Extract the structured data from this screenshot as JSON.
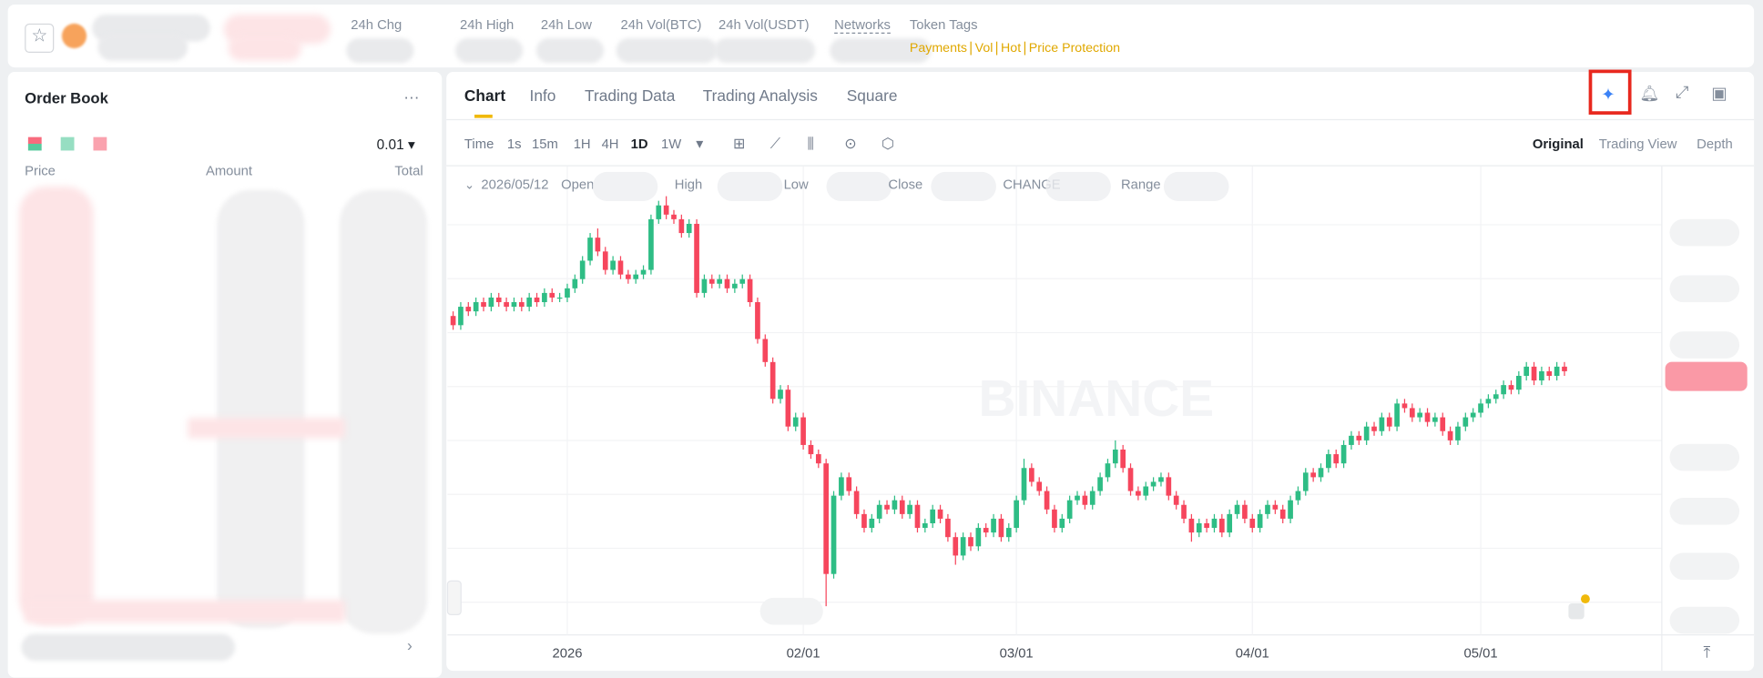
{
  "top_bar": {
    "stats": [
      "24h Chg",
      "24h High",
      "24h Low",
      "24h Vol(BTC)",
      "24h Vol(USDT)",
      "Networks"
    ],
    "token_tags_label": "Token Tags",
    "tags": [
      "Payments",
      "Vol",
      "Hot",
      "Price Protection"
    ]
  },
  "order_book": {
    "title": "Order Book",
    "precision": "0.01",
    "columns": [
      "Price",
      "Amount",
      "Total"
    ]
  },
  "chart_panel": {
    "tabs": [
      "Chart",
      "Info",
      "Trading Data",
      "Trading Analysis",
      "Square"
    ],
    "intervals": [
      "Time",
      "1s",
      "15m",
      "1H",
      "4H",
      "1D",
      "1W"
    ],
    "views": [
      "Original",
      "Trading View",
      "Depth"
    ],
    "legend": {
      "date": "2026/05/12",
      "fields": [
        "Open",
        "High",
        "Low",
        "Close",
        "CHANGE",
        "Range"
      ]
    },
    "watermark": "BINANCE"
  },
  "chart": {
    "type": "candlestick",
    "x_labels": [
      "2026",
      "02/01",
      "03/01",
      "04/01",
      "05/01"
    ],
    "ylim": [
      0,
      100
    ],
    "up_color": "#2ebd85",
    "down_color": "#f6465d",
    "grid": true,
    "candles": [
      [
        68,
        69,
        65,
        66
      ],
      [
        66,
        71,
        65,
        70
      ],
      [
        70,
        71,
        68,
        69
      ],
      [
        69,
        72,
        68,
        71
      ],
      [
        71,
        72,
        69,
        70
      ],
      [
        70,
        73,
        69,
        72
      ],
      [
        72,
        73,
        70,
        71
      ],
      [
        71,
        72,
        69,
        70
      ],
      [
        70,
        72,
        69,
        71
      ],
      [
        71,
        72,
        69,
        70
      ],
      [
        70,
        73,
        69,
        72
      ],
      [
        72,
        73,
        70,
        71
      ],
      [
        71,
        74,
        70,
        73
      ],
      [
        73,
        74,
        71,
        72
      ],
      [
        72,
        73,
        71,
        72
      ],
      [
        72,
        75,
        71,
        74
      ],
      [
        74,
        77,
        73,
        76
      ],
      [
        76,
        81,
        75,
        80
      ],
      [
        80,
        86,
        79,
        85
      ],
      [
        85,
        87,
        81,
        82
      ],
      [
        82,
        83,
        77,
        78
      ],
      [
        78,
        81,
        77,
        80
      ],
      [
        80,
        81,
        76,
        77
      ],
      [
        77,
        78,
        75,
        76
      ],
      [
        76,
        78,
        75,
        77
      ],
      [
        77,
        79,
        76,
        78
      ],
      [
        78,
        90,
        77,
        89
      ],
      [
        89,
        93,
        88,
        92
      ],
      [
        92,
        94,
        89,
        90
      ],
      [
        90,
        91,
        88,
        89
      ],
      [
        89,
        90,
        85,
        86
      ],
      [
        86,
        89,
        85,
        88
      ],
      [
        88,
        89,
        72,
        73
      ],
      [
        73,
        77,
        72,
        76
      ],
      [
        76,
        77,
        74,
        75
      ],
      [
        75,
        77,
        74,
        76
      ],
      [
        76,
        77,
        73,
        74
      ],
      [
        74,
        76,
        73,
        75
      ],
      [
        75,
        77,
        74,
        76
      ],
      [
        76,
        77,
        70,
        71
      ],
      [
        71,
        72,
        62,
        63
      ],
      [
        63,
        64,
        57,
        58
      ],
      [
        58,
        59,
        49,
        50
      ],
      [
        50,
        53,
        49,
        52
      ],
      [
        52,
        53,
        43,
        44
      ],
      [
        44,
        47,
        43,
        46
      ],
      [
        46,
        47,
        39,
        40
      ],
      [
        40,
        41,
        37,
        38
      ],
      [
        38,
        39,
        35,
        36
      ],
      [
        36,
        37,
        5,
        12
      ],
      [
        12,
        30,
        11,
        29
      ],
      [
        29,
        34,
        28,
        33
      ],
      [
        33,
        34,
        29,
        30
      ],
      [
        30,
        31,
        24,
        25
      ],
      [
        25,
        26,
        21,
        22
      ],
      [
        22,
        25,
        21,
        24
      ],
      [
        24,
        28,
        23,
        27
      ],
      [
        27,
        28,
        25,
        26
      ],
      [
        26,
        29,
        25,
        28
      ],
      [
        28,
        29,
        24,
        25
      ],
      [
        25,
        28,
        24,
        27
      ],
      [
        27,
        28,
        21,
        22
      ],
      [
        22,
        24,
        21,
        23
      ],
      [
        23,
        27,
        22,
        26
      ],
      [
        26,
        27,
        23,
        24
      ],
      [
        24,
        25,
        19,
        20
      ],
      [
        20,
        21,
        14,
        16
      ],
      [
        16,
        21,
        15,
        20
      ],
      [
        20,
        21,
        17,
        18
      ],
      [
        18,
        23,
        17,
        22
      ],
      [
        22,
        23,
        20,
        21
      ],
      [
        21,
        25,
        20,
        24
      ],
      [
        24,
        25,
        19,
        20
      ],
      [
        20,
        23,
        19,
        22
      ],
      [
        22,
        29,
        21,
        28
      ],
      [
        28,
        37,
        27,
        35
      ],
      [
        35,
        36,
        31,
        32
      ],
      [
        32,
        33,
        29,
        30
      ],
      [
        30,
        31,
        25,
        26
      ],
      [
        26,
        27,
        21,
        22
      ],
      [
        22,
        25,
        21,
        24
      ],
      [
        24,
        29,
        23,
        28
      ],
      [
        28,
        30,
        27,
        29
      ],
      [
        29,
        30,
        26,
        27
      ],
      [
        27,
        31,
        26,
        30
      ],
      [
        30,
        34,
        29,
        33
      ],
      [
        33,
        37,
        32,
        36
      ],
      [
        36,
        41,
        35,
        39
      ],
      [
        39,
        40,
        34,
        35
      ],
      [
        35,
        36,
        29,
        30
      ],
      [
        30,
        31,
        28,
        29
      ],
      [
        29,
        32,
        28,
        31
      ],
      [
        31,
        33,
        30,
        32
      ],
      [
        32,
        34,
        31,
        33
      ],
      [
        33,
        34,
        28,
        29
      ],
      [
        29,
        30,
        26,
        27
      ],
      [
        27,
        28,
        23,
        24
      ],
      [
        24,
        25,
        19,
        21
      ],
      [
        21,
        24,
        20,
        23
      ],
      [
        23,
        24,
        21,
        22
      ],
      [
        22,
        25,
        21,
        24
      ],
      [
        24,
        25,
        20,
        21
      ],
      [
        21,
        26,
        20,
        25
      ],
      [
        25,
        28,
        24,
        27
      ],
      [
        27,
        28,
        23,
        24
      ],
      [
        24,
        25,
        21,
        22
      ],
      [
        22,
        26,
        21,
        25
      ],
      [
        25,
        28,
        24,
        27
      ],
      [
        27,
        28,
        25,
        26
      ],
      [
        26,
        27,
        23,
        24
      ],
      [
        24,
        29,
        23,
        28
      ],
      [
        28,
        31,
        27,
        30
      ],
      [
        30,
        35,
        29,
        34
      ],
      [
        34,
        35,
        32,
        33
      ],
      [
        33,
        36,
        32,
        35
      ],
      [
        35,
        39,
        34,
        38
      ],
      [
        38,
        39,
        35,
        36
      ],
      [
        36,
        41,
        35,
        40
      ],
      [
        40,
        43,
        39,
        42
      ],
      [
        42,
        43,
        40,
        41
      ],
      [
        41,
        45,
        40,
        44
      ],
      [
        44,
        45,
        42,
        43
      ],
      [
        43,
        47,
        42,
        46
      ],
      [
        46,
        47,
        43,
        44
      ],
      [
        44,
        50,
        43,
        49
      ],
      [
        49,
        50,
        47,
        48
      ],
      [
        48,
        49,
        45,
        46
      ],
      [
        46,
        48,
        45,
        47
      ],
      [
        47,
        48,
        44,
        45
      ],
      [
        45,
        47,
        44,
        46
      ],
      [
        46,
        47,
        42,
        43
      ],
      [
        43,
        44,
        40,
        41
      ],
      [
        41,
        45,
        40,
        44
      ],
      [
        44,
        47,
        43,
        46
      ],
      [
        46,
        48,
        45,
        47
      ],
      [
        47,
        50,
        46,
        49
      ],
      [
        49,
        51,
        48,
        50
      ],
      [
        50,
        52,
        49,
        51
      ],
      [
        51,
        54,
        50,
        53
      ],
      [
        53,
        54,
        51,
        52
      ],
      [
        52,
        56,
        51,
        55
      ],
      [
        55,
        58,
        54,
        57
      ],
      [
        57,
        58,
        53,
        54
      ],
      [
        54,
        57,
        53,
        56
      ],
      [
        56,
        57,
        54,
        55
      ],
      [
        55,
        58,
        54,
        57
      ],
      [
        57,
        58,
        55,
        56
      ]
    ]
  }
}
